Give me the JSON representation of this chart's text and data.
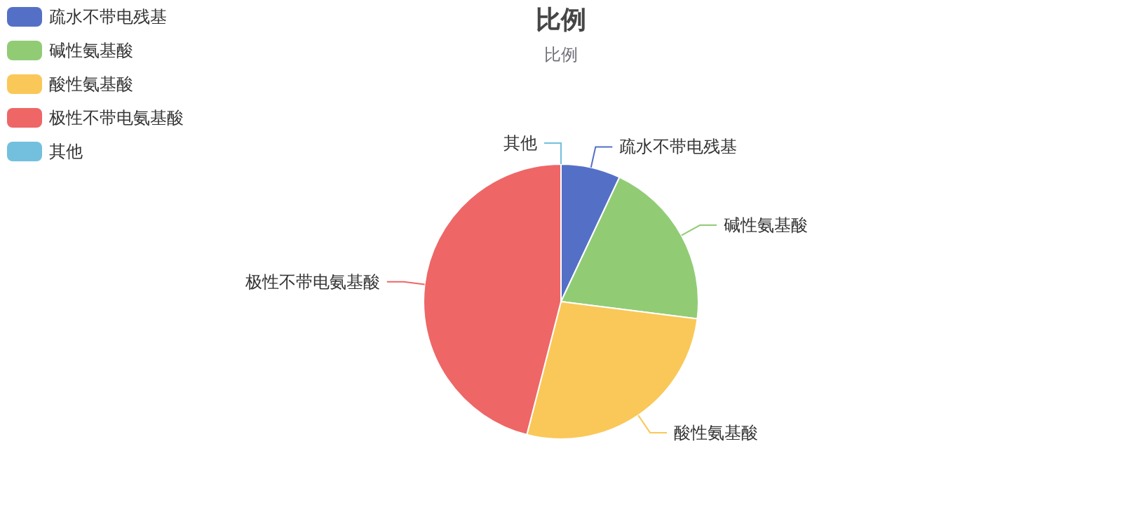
{
  "chart_data": {
    "type": "pie",
    "title": "比例",
    "subtitle": "比例",
    "legend": "top left",
    "categories": [
      "疏水不带电残基",
      "碱性氨基酸",
      "酸性氨基酸",
      "极性不带电氨基酸",
      "其他"
    ],
    "values": [
      7,
      20,
      27,
      46,
      0
    ],
    "colors": [
      "#5470c6",
      "#91cc75",
      "#fac858",
      "#ee6666",
      "#73c0de"
    ]
  }
}
